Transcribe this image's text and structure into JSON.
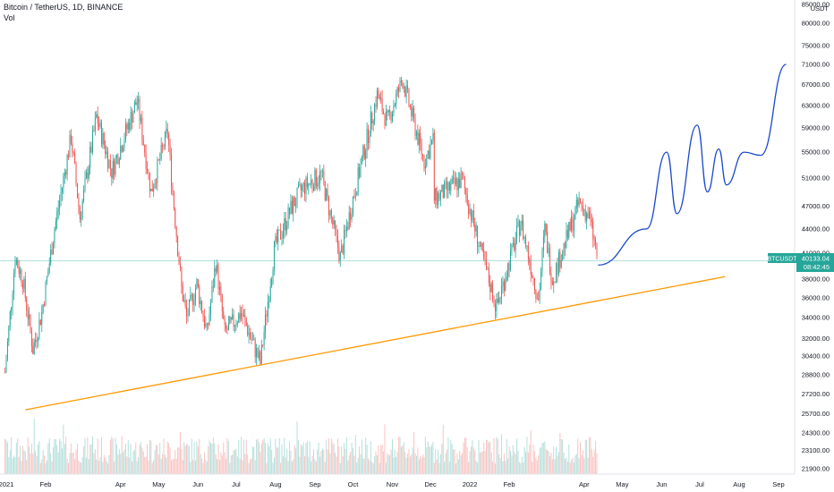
{
  "header": {
    "symbol_line": "Bitcoin / TetherUS, 1D, BINANCE",
    "volume_label": "Vol"
  },
  "price_axis": {
    "currency": "USDT",
    "ticks": [
      "85000.00",
      "80000.00",
      "75000.00",
      "71000.00",
      "67000.00",
      "63000.00",
      "59000.00",
      "55000.00",
      "51000.00",
      "47000.00",
      "44000.00",
      "41000.00",
      "38000.00",
      "36000.00",
      "34000.00",
      "32000.00",
      "30400.00",
      "28800.00",
      "27200.00",
      "25700.00",
      "24300.00",
      "23100.00",
      "21900.00"
    ]
  },
  "time_axis": {
    "ticks": [
      "2021",
      "Feb",
      "Apr",
      "May",
      "Jun",
      "Jul",
      "Aug",
      "Sep",
      "Oct",
      "Nov",
      "Dec",
      "2022",
      "Feb",
      "Apr",
      "May",
      "Jun",
      "Jul",
      "Aug",
      "Sep"
    ]
  },
  "last_price": {
    "ticker": "BTCUSDT",
    "price": "40133.04",
    "countdown": "08:42:45"
  },
  "colors": {
    "up": "#26a69a",
    "down": "#ef5350",
    "trendline": "#ff9800",
    "projection": "#1848cc",
    "price_line": "#26a69a"
  },
  "chart_data": {
    "type": "candlestick",
    "symbol": "BTCUSDT",
    "interval": "1D",
    "exchange": "BINANCE",
    "y_scale": "log",
    "ylim": [
      21900,
      85000
    ],
    "price_path": [
      [
        "2020-12-31",
        29000
      ],
      [
        "2021-01-08",
        40500
      ],
      [
        "2021-01-14",
        38000
      ],
      [
        "2021-01-22",
        31000
      ],
      [
        "2021-01-29",
        34500
      ],
      [
        "2021-02-08",
        44000
      ],
      [
        "2021-02-21",
        57500
      ],
      [
        "2021-02-28",
        45500
      ],
      [
        "2021-03-13",
        61000
      ],
      [
        "2021-03-25",
        52000
      ],
      [
        "2021-04-14",
        64000
      ],
      [
        "2021-04-25",
        49000
      ],
      [
        "2021-05-08",
        58500
      ],
      [
        "2021-05-12",
        49000
      ],
      [
        "2021-05-19",
        37000
      ],
      [
        "2021-05-23",
        34000
      ],
      [
        "2021-05-31",
        37500
      ],
      [
        "2021-06-08",
        32500
      ],
      [
        "2021-06-15",
        40000
      ],
      [
        "2021-06-22",
        32500
      ],
      [
        "2021-07-05",
        34500
      ],
      [
        "2021-07-20",
        29800
      ],
      [
        "2021-07-31",
        41500
      ],
      [
        "2021-08-14",
        47000
      ],
      [
        "2021-08-22",
        49500
      ],
      [
        "2021-09-06",
        51500
      ],
      [
        "2021-09-21",
        40500
      ],
      [
        "2021-10-01",
        48000
      ],
      [
        "2021-10-20",
        65000
      ],
      [
        "2021-10-28",
        60000
      ],
      [
        "2021-11-09",
        68000
      ],
      [
        "2021-11-26",
        53500
      ],
      [
        "2021-12-03",
        57000
      ],
      [
        "2021-12-04",
        48000
      ],
      [
        "2021-12-26",
        50800
      ],
      [
        "2022-01-10",
        41000
      ],
      [
        "2022-01-22",
        35000
      ],
      [
        "2022-01-24",
        36000
      ],
      [
        "2022-02-10",
        45000
      ],
      [
        "2022-02-24",
        35800
      ],
      [
        "2022-03-01",
        44000
      ],
      [
        "2022-03-07",
        38000
      ],
      [
        "2022-03-28",
        47500
      ],
      [
        "2022-04-05",
        45500
      ],
      [
        "2022-04-12",
        40133
      ]
    ],
    "volume_series": "present (volume bars at bottom)",
    "annotations": [
      {
        "type": "trendline",
        "color": "orange",
        "from": [
          "2021-01-16",
          26000
        ],
        "to": [
          "2022-07-21",
          38300
        ]
      },
      {
        "type": "projection",
        "color": "blue",
        "points": [
          [
            "2022-04-12",
            39600
          ],
          [
            "2022-05-20",
            44000
          ],
          [
            "2022-06-05",
            55000
          ],
          [
            "2022-06-13",
            46000
          ],
          [
            "2022-06-29",
            59500
          ],
          [
            "2022-07-07",
            49000
          ],
          [
            "2022-07-16",
            55500
          ],
          [
            "2022-07-22",
            50000
          ],
          [
            "2022-08-05",
            55000
          ],
          [
            "2022-08-18",
            54500
          ],
          [
            "2022-09-07",
            71000
          ]
        ]
      },
      {
        "type": "horizontal_price_line",
        "value": 40133.04
      }
    ]
  }
}
